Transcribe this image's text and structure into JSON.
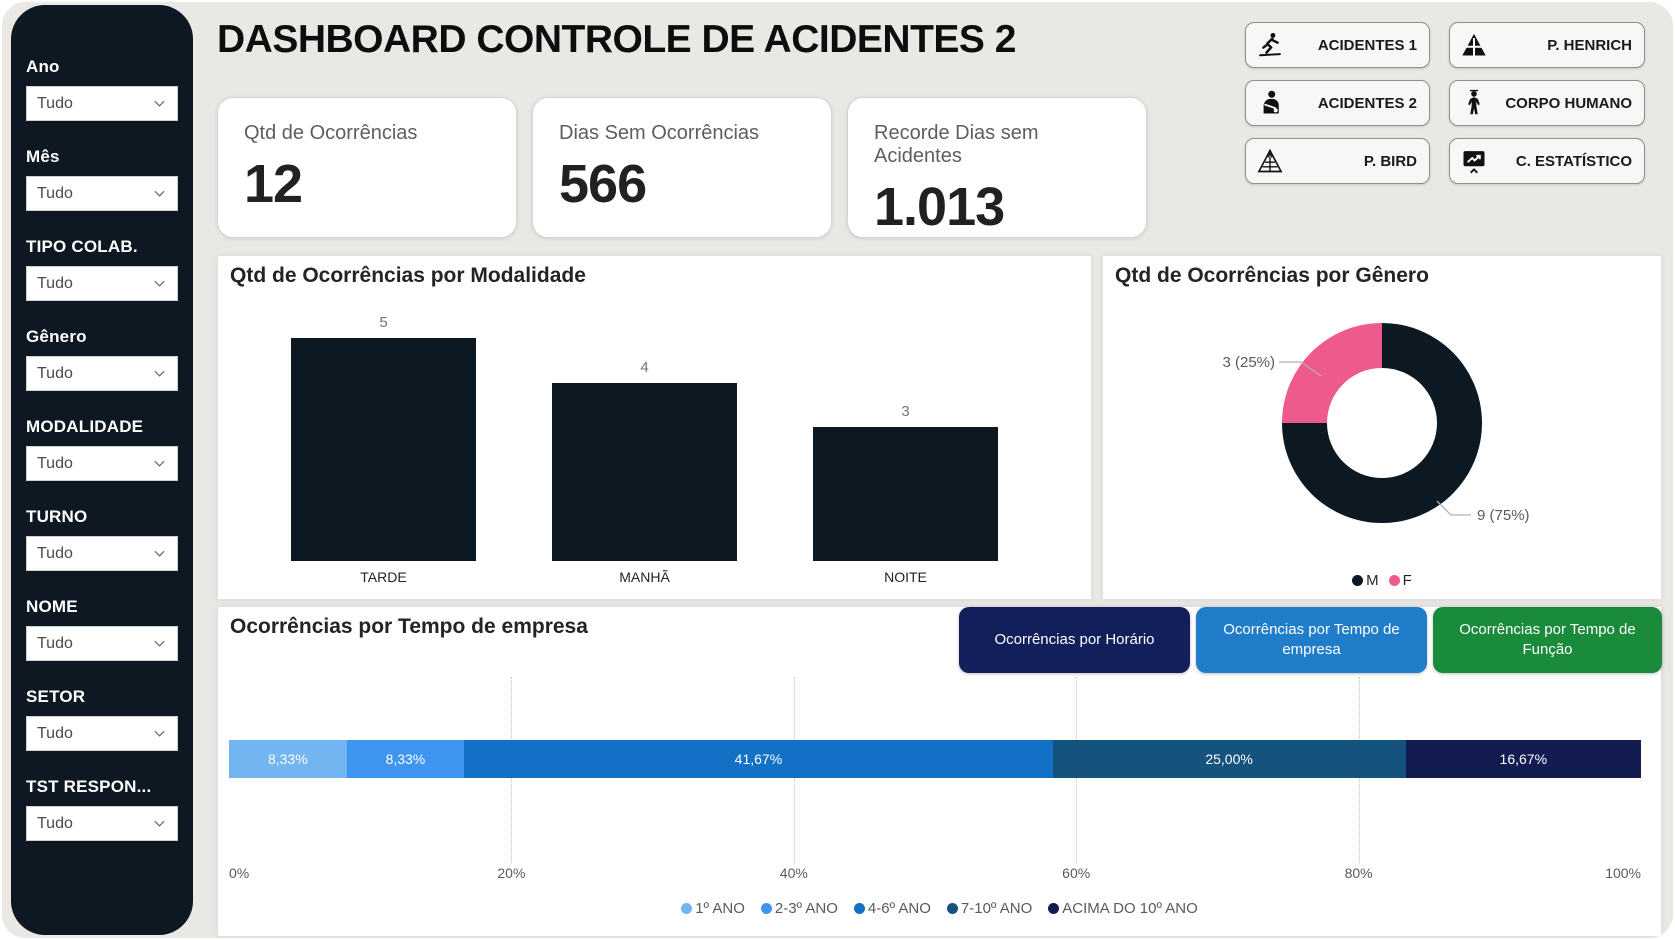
{
  "title": "DASHBOARD CONTROLE DE ACIDENTES 2",
  "sidebar": {
    "filters": [
      {
        "label": "Ano",
        "value": "Tudo"
      },
      {
        "label": "Mês",
        "value": "Tudo"
      },
      {
        "label": "TIPO COLAB.",
        "value": "Tudo"
      },
      {
        "label": "Gênero",
        "value": "Tudo"
      },
      {
        "label": "MODALIDADE",
        "value": "Tudo"
      },
      {
        "label": "TURNO",
        "value": "Tudo"
      },
      {
        "label": "NOME",
        "value": "Tudo"
      },
      {
        "label": "SETOR",
        "value": "Tudo"
      },
      {
        "label": "TST RESPON...",
        "value": "Tudo"
      }
    ]
  },
  "kpis": [
    {
      "label": "Qtd de Ocorrências",
      "value": "12"
    },
    {
      "label": "Dias Sem Ocorrências",
      "value": "566"
    },
    {
      "label": "Recorde Dias sem Acidentes",
      "value": "1.013"
    }
  ],
  "nav_buttons": [
    {
      "label": "ACIDENTES 1",
      "icon": "person-slipping-icon"
    },
    {
      "label": "P. HENRICH",
      "icon": "pyramid-solid-icon"
    },
    {
      "label": "ACIDENTES 2",
      "icon": "person-arm-sling-icon"
    },
    {
      "label": "CORPO HUMANO",
      "icon": "human-body-icon"
    },
    {
      "label": "P. BIRD",
      "icon": "pyramid-outline-icon"
    },
    {
      "label": "C. ESTATÍSTICO",
      "icon": "chart-board-icon"
    }
  ],
  "tab_buttons": [
    {
      "label": "Ocorrências por Horário",
      "color": "#131f5b"
    },
    {
      "label": "Ocorrências por Tempo de empresa",
      "color": "#1f7dca"
    },
    {
      "label": "Ocorrências por Tempo de Função",
      "color": "#1a8a3b"
    }
  ],
  "chart_data": [
    {
      "type": "bar",
      "title": "Qtd de Ocorrências por Modalidade",
      "categories": [
        "TARDE",
        "MANHÃ",
        "NOITE"
      ],
      "values": [
        5,
        4,
        3
      ],
      "bar_color": "#0c1822",
      "ylim": [
        0,
        5
      ],
      "grid": false,
      "data_labels": true
    },
    {
      "type": "pie",
      "title": "Qtd de Ocorrências por Gênero",
      "segments": [
        {
          "label": "M",
          "value": 9,
          "pct": 75,
          "callout": "9 (75%)",
          "color": "#0c1822"
        },
        {
          "label": "F",
          "value": 3,
          "pct": 25,
          "callout": "3 (25%)",
          "color": "#ef5a8c"
        }
      ],
      "legend_position": "bottom"
    },
    {
      "type": "bar",
      "subtype": "stacked-horizontal-100pct",
      "title": "Ocorrências por Tempo de empresa",
      "series": [
        {
          "name": "1º ANO",
          "value": 8.33,
          "label": "8,33%",
          "color": "#73b5f1"
        },
        {
          "name": "2-3º ANO",
          "value": 8.33,
          "label": "8,33%",
          "color": "#3d95ef"
        },
        {
          "name": "4-6º ANO",
          "value": 41.67,
          "label": "41,67%",
          "color": "#1271c6"
        },
        {
          "name": "7-10º ANO",
          "value": 25.0,
          "label": "25,00%",
          "color": "#14537e"
        },
        {
          "name": "ACIMA DO 10º ANO",
          "value": 16.67,
          "label": "16,67%",
          "color": "#131c50"
        }
      ],
      "x_ticks": [
        "0%",
        "20%",
        "40%",
        "60%",
        "80%",
        "100%"
      ],
      "xlim": [
        0,
        100
      ],
      "grid": true,
      "legend_position": "bottom"
    }
  ]
}
